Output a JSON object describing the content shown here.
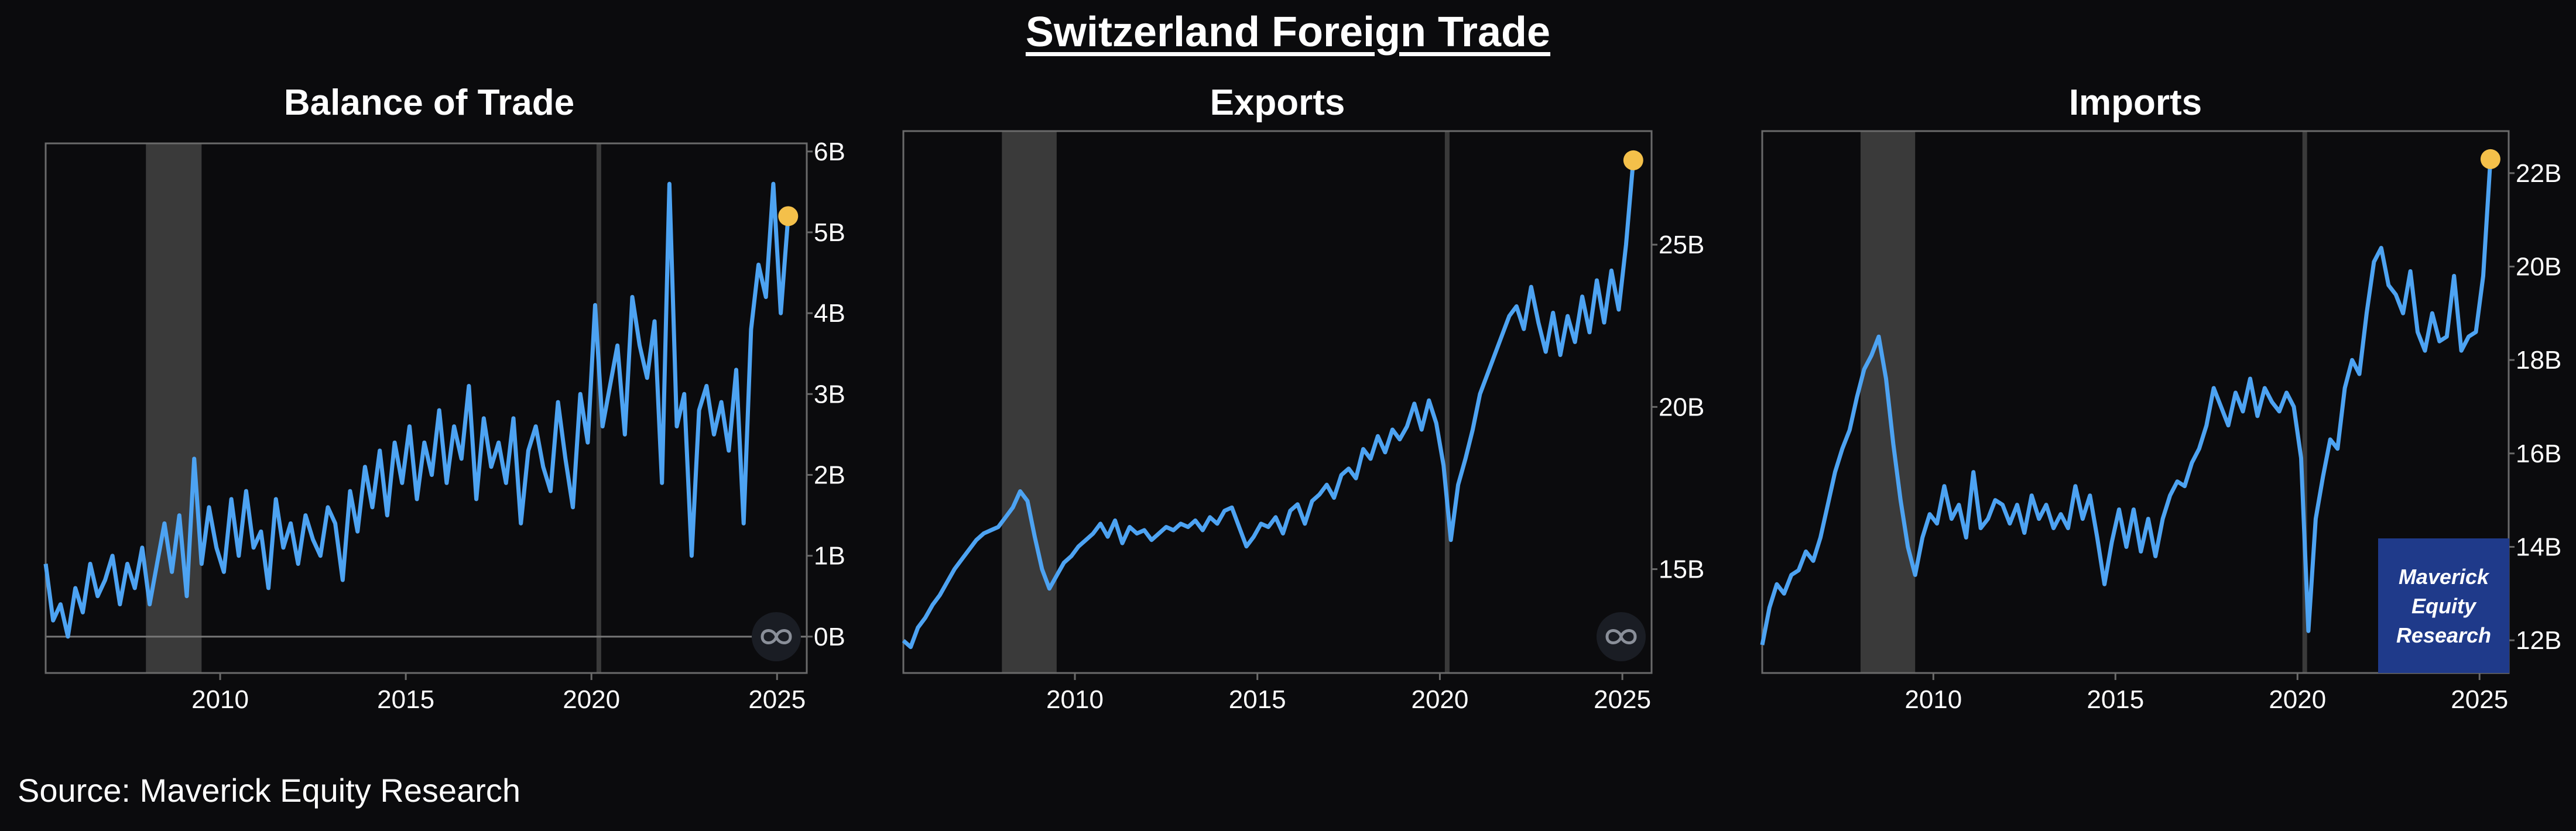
{
  "page": {
    "title": "Switzerland Foreign Trade",
    "source": "Source: Maverick Equity Research",
    "watermark": [
      "Maverick",
      "Equity",
      "Research"
    ]
  },
  "colors": {
    "line": "#4da3f2",
    "last_point": "#f4c04a",
    "recession": "#3a3a3a",
    "background": "#0b0b0d",
    "axis": "#6a6a6a",
    "watermark_bg": "#1f3a8a"
  },
  "chart_data": [
    {
      "type": "line",
      "title": "Balance of Trade",
      "xlabel": "",
      "ylabel": "",
      "x_ticks": [
        2010,
        2015,
        2020,
        2025
      ],
      "y_ticks": [
        0,
        1,
        2,
        3,
        4,
        5,
        6
      ],
      "y_tick_labels": [
        "0B",
        "1B",
        "2B",
        "3B",
        "4B",
        "5B",
        "6B"
      ],
      "xlim": [
        2005.3,
        2025.8
      ],
      "ylim": [
        -0.45,
        6.1
      ],
      "y_axis_side": "right",
      "zero_line": true,
      "recession_band": [
        2008.0,
        2009.5
      ],
      "covid_line": 2020.2,
      "series": [
        {
          "x": [
            2005.3,
            2005.5,
            2005.7,
            2005.9,
            2006.1,
            2006.3,
            2006.5,
            2006.7,
            2006.9,
            2007.1,
            2007.3,
            2007.5,
            2007.7,
            2007.9,
            2008.1,
            2008.3,
            2008.5,
            2008.7,
            2008.9,
            2009.1,
            2009.3,
            2009.5,
            2009.7,
            2009.9,
            2010.1,
            2010.3,
            2010.5,
            2010.7,
            2010.9,
            2011.1,
            2011.3,
            2011.5,
            2011.7,
            2011.9,
            2012.1,
            2012.3,
            2012.5,
            2012.7,
            2012.9,
            2013.1,
            2013.3,
            2013.5,
            2013.7,
            2013.9,
            2014.1,
            2014.3,
            2014.5,
            2014.7,
            2014.9,
            2015.1,
            2015.3,
            2015.5,
            2015.7,
            2015.9,
            2016.1,
            2016.3,
            2016.5,
            2016.7,
            2016.9,
            2017.1,
            2017.3,
            2017.5,
            2017.7,
            2017.9,
            2018.1,
            2018.3,
            2018.5,
            2018.7,
            2018.9,
            2019.1,
            2019.3,
            2019.5,
            2019.7,
            2019.9,
            2020.1,
            2020.3,
            2020.5,
            2020.7,
            2020.9,
            2021.1,
            2021.3,
            2021.5,
            2021.7,
            2021.9,
            2022.1,
            2022.3,
            2022.5,
            2022.7,
            2022.9,
            2023.1,
            2023.3,
            2023.5,
            2023.7,
            2023.9,
            2024.1,
            2024.3,
            2024.5,
            2024.7,
            2024.9,
            2025.1,
            2025.3
          ],
          "y": [
            0.9,
            0.2,
            0.4,
            0.0,
            0.6,
            0.3,
            0.9,
            0.5,
            0.7,
            1.0,
            0.4,
            0.9,
            0.6,
            1.1,
            0.4,
            0.9,
            1.4,
            0.8,
            1.5,
            0.5,
            2.2,
            0.9,
            1.6,
            1.1,
            0.8,
            1.7,
            1.0,
            1.8,
            1.1,
            1.3,
            0.6,
            1.7,
            1.1,
            1.4,
            0.9,
            1.5,
            1.2,
            1.0,
            1.6,
            1.4,
            0.7,
            1.8,
            1.3,
            2.1,
            1.6,
            2.3,
            1.5,
            2.4,
            1.9,
            2.6,
            1.7,
            2.4,
            2.0,
            2.8,
            1.9,
            2.6,
            2.2,
            3.1,
            1.7,
            2.7,
            2.1,
            2.4,
            1.9,
            2.7,
            1.4,
            2.3,
            2.6,
            2.1,
            1.8,
            2.9,
            2.2,
            1.6,
            3.0,
            2.4,
            4.1,
            2.6,
            3.1,
            3.6,
            2.5,
            4.2,
            3.6,
            3.2,
            3.9,
            1.9,
            5.6,
            2.6,
            3.0,
            1.0,
            2.8,
            3.1,
            2.5,
            2.9,
            2.3,
            3.3,
            1.4,
            3.8,
            4.6,
            4.2,
            5.6,
            4.0,
            5.2
          ]
        }
      ]
    },
    {
      "type": "line",
      "title": "Exports",
      "xlabel": "",
      "ylabel": "",
      "x_ticks": [
        2010,
        2015,
        2020,
        2025
      ],
      "y_ticks": [
        15,
        20,
        25
      ],
      "y_tick_labels": [
        "15B",
        "20B",
        "25B"
      ],
      "xlim": [
        2005.3,
        2025.8
      ],
      "ylim": [
        11.8,
        28.5
      ],
      "y_axis_side": "right",
      "zero_line": false,
      "recession_band": [
        2008.0,
        2009.5
      ],
      "covid_line": 2020.2,
      "series": [
        {
          "x": [
            2005.3,
            2005.5,
            2005.7,
            2005.9,
            2006.1,
            2006.3,
            2006.5,
            2006.7,
            2006.9,
            2007.1,
            2007.3,
            2007.5,
            2007.7,
            2007.9,
            2008.1,
            2008.3,
            2008.5,
            2008.7,
            2008.9,
            2009.1,
            2009.3,
            2009.5,
            2009.7,
            2009.9,
            2010.1,
            2010.3,
            2010.5,
            2010.7,
            2010.9,
            2011.1,
            2011.3,
            2011.5,
            2011.7,
            2011.9,
            2012.1,
            2012.3,
            2012.5,
            2012.7,
            2012.9,
            2013.1,
            2013.3,
            2013.5,
            2013.7,
            2013.9,
            2014.1,
            2014.3,
            2014.5,
            2014.7,
            2014.9,
            2015.1,
            2015.3,
            2015.5,
            2015.7,
            2015.9,
            2016.1,
            2016.3,
            2016.5,
            2016.7,
            2016.9,
            2017.1,
            2017.3,
            2017.5,
            2017.7,
            2017.9,
            2018.1,
            2018.3,
            2018.5,
            2018.7,
            2018.9,
            2019.1,
            2019.3,
            2019.5,
            2019.7,
            2019.9,
            2020.1,
            2020.3,
            2020.5,
            2020.7,
            2020.9,
            2021.1,
            2021.3,
            2021.5,
            2021.7,
            2021.9,
            2022.1,
            2022.3,
            2022.5,
            2022.7,
            2022.9,
            2023.1,
            2023.3,
            2023.5,
            2023.7,
            2023.9,
            2024.1,
            2024.3,
            2024.5,
            2024.7,
            2024.9,
            2025.1,
            2025.3
          ],
          "y": [
            12.8,
            12.6,
            13.2,
            13.5,
            13.9,
            14.2,
            14.6,
            15.0,
            15.3,
            15.6,
            15.9,
            16.1,
            16.2,
            16.3,
            16.6,
            16.9,
            17.4,
            17.1,
            16.0,
            15.0,
            14.4,
            14.8,
            15.2,
            15.4,
            15.7,
            15.9,
            16.1,
            16.4,
            16.0,
            16.5,
            15.8,
            16.3,
            16.1,
            16.2,
            15.9,
            16.1,
            16.3,
            16.2,
            16.4,
            16.3,
            16.5,
            16.2,
            16.6,
            16.4,
            16.8,
            16.9,
            16.3,
            15.7,
            16.0,
            16.4,
            16.3,
            16.6,
            16.1,
            16.8,
            17.0,
            16.4,
            17.1,
            17.3,
            17.6,
            17.2,
            17.9,
            18.1,
            17.8,
            18.7,
            18.4,
            19.1,
            18.6,
            19.3,
            19.0,
            19.4,
            20.1,
            19.3,
            20.2,
            19.5,
            18.2,
            15.9,
            17.6,
            18.4,
            19.3,
            20.4,
            21.0,
            21.6,
            22.2,
            22.8,
            23.1,
            22.4,
            23.7,
            22.6,
            21.7,
            22.9,
            21.6,
            22.8,
            22.0,
            23.4,
            22.3,
            23.9,
            22.6,
            24.2,
            23.0,
            25.0,
            27.6
          ]
        }
      ]
    },
    {
      "type": "line",
      "title": "Imports",
      "xlabel": "",
      "ylabel": "",
      "x_ticks": [
        2010,
        2015,
        2020,
        2025
      ],
      "y_ticks": [
        12,
        14,
        16,
        18,
        20,
        22
      ],
      "y_tick_labels": [
        "12B",
        "14B",
        "16B",
        "18B",
        "20B",
        "22B"
      ],
      "xlim": [
        2005.3,
        2025.8
      ],
      "ylim": [
        11.3,
        22.9
      ],
      "y_axis_side": "right",
      "zero_line": false,
      "recession_band": [
        2008.0,
        2009.5
      ],
      "covid_line": 2020.2,
      "series": [
        {
          "x": [
            2005.3,
            2005.5,
            2005.7,
            2005.9,
            2006.1,
            2006.3,
            2006.5,
            2006.7,
            2006.9,
            2007.1,
            2007.3,
            2007.5,
            2007.7,
            2007.9,
            2008.1,
            2008.3,
            2008.5,
            2008.7,
            2008.9,
            2009.1,
            2009.3,
            2009.5,
            2009.7,
            2009.9,
            2010.1,
            2010.3,
            2010.5,
            2010.7,
            2010.9,
            2011.1,
            2011.3,
            2011.5,
            2011.7,
            2011.9,
            2012.1,
            2012.3,
            2012.5,
            2012.7,
            2012.9,
            2013.1,
            2013.3,
            2013.5,
            2013.7,
            2013.9,
            2014.1,
            2014.3,
            2014.5,
            2014.7,
            2014.9,
            2015.1,
            2015.3,
            2015.5,
            2015.7,
            2015.9,
            2016.1,
            2016.3,
            2016.5,
            2016.7,
            2016.9,
            2017.1,
            2017.3,
            2017.5,
            2017.7,
            2017.9,
            2018.1,
            2018.3,
            2018.5,
            2018.7,
            2018.9,
            2019.1,
            2019.3,
            2019.5,
            2019.7,
            2019.9,
            2020.1,
            2020.3,
            2020.5,
            2020.7,
            2020.9,
            2021.1,
            2021.3,
            2021.5,
            2021.7,
            2021.9,
            2022.1,
            2022.3,
            2022.5,
            2022.7,
            2022.9,
            2023.1,
            2023.3,
            2023.5,
            2023.7,
            2023.9,
            2024.1,
            2024.3,
            2024.5,
            2024.7,
            2024.9,
            2025.1,
            2025.3
          ],
          "y": [
            11.9,
            12.7,
            13.2,
            13.0,
            13.4,
            13.5,
            13.9,
            13.7,
            14.2,
            14.9,
            15.6,
            16.1,
            16.5,
            17.2,
            17.8,
            18.1,
            18.5,
            17.6,
            16.2,
            15.0,
            14.0,
            13.4,
            14.2,
            14.7,
            14.5,
            15.3,
            14.6,
            14.9,
            14.2,
            15.6,
            14.4,
            14.6,
            15.0,
            14.9,
            14.5,
            14.9,
            14.3,
            15.1,
            14.6,
            14.9,
            14.4,
            14.7,
            14.4,
            15.3,
            14.6,
            15.1,
            14.2,
            13.2,
            14.1,
            14.8,
            14.0,
            14.8,
            13.9,
            14.6,
            13.8,
            14.6,
            15.1,
            15.4,
            15.3,
            15.8,
            16.1,
            16.6,
            17.4,
            17.0,
            16.6,
            17.3,
            16.9,
            17.6,
            16.8,
            17.4,
            17.1,
            16.9,
            17.3,
            17.0,
            15.9,
            12.2,
            14.6,
            15.5,
            16.3,
            16.1,
            17.4,
            18.0,
            17.7,
            19.0,
            20.1,
            20.4,
            19.6,
            19.4,
            19.0,
            19.9,
            18.6,
            18.2,
            19.0,
            18.4,
            18.5,
            19.8,
            18.2,
            18.5,
            18.6,
            19.8,
            22.3
          ]
        }
      ]
    }
  ]
}
